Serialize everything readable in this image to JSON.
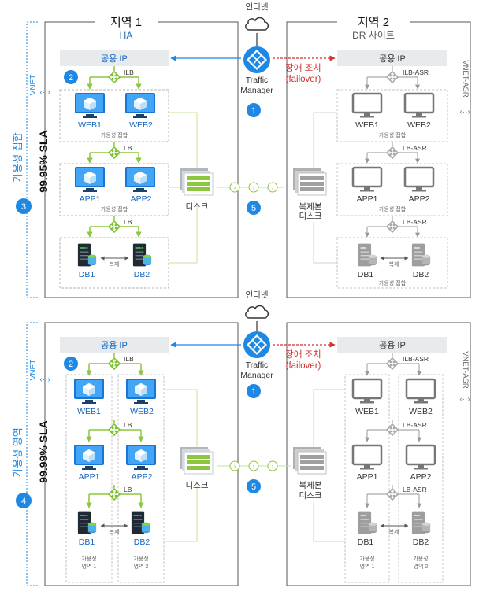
{
  "top": {
    "region1_title": "지역 1",
    "region1_sub": "HA",
    "region2_title": "지역 2",
    "region2_sub": "DR 사이트",
    "internet": "인터넷",
    "public_ip_left": "공용 IP",
    "public_ip_right": "공용 IP",
    "traffic_manager": [
      "Traffic",
      "Manager"
    ],
    "failover_ko": "장애 조치",
    "failover_en": "(failover)",
    "vnet": "VNET",
    "vnet_asr": "VNET-ASR",
    "ilb": "ILB",
    "lb": "LB",
    "ilb_asr": "ILB-ASR",
    "lb_asr": "LB-ASR",
    "web1": "WEB1",
    "web2": "WEB2",
    "app1": "APP1",
    "app2": "APP2",
    "db1": "DB1",
    "db2": "DB2",
    "availability_set": "가용성 집합",
    "replication": "복제",
    "disk": "디스크",
    "replica_disk": [
      "복제본",
      "디스크"
    ],
    "sla": "99.95% SLA",
    "side_label": "가용성 집합",
    "badge_2": "2",
    "badge_3": "3",
    "badge_1": "1",
    "badge_5": "5"
  },
  "bottom": {
    "internet": "인터넷",
    "public_ip_left": "공용 IP",
    "public_ip_right": "공용 IP",
    "traffic_manager": [
      "Traffic",
      "Manager"
    ],
    "failover_ko": "장애 조치",
    "failover_en": "(failover)",
    "vnet": "VNET",
    "vnet_asr": "VNET-ASR",
    "ilb": "ILB",
    "lb": "LB",
    "ilb_asr": "ILB-ASR",
    "lb_asr": "LB-ASR",
    "web1": "WEB1",
    "web2": "WEB2",
    "app1": "APP1",
    "app2": "APP2",
    "db1": "DB1",
    "db2": "DB2",
    "zone1": [
      "가용성",
      "영역 1"
    ],
    "zone2": [
      "가용성",
      "영역 2"
    ],
    "replication": "복제",
    "disk": "디스크",
    "replica_disk": [
      "복제본",
      "디스크"
    ],
    "sla": "99.99% SLA",
    "side_label": "가용성 영역",
    "badge_2": "2",
    "badge_4": "4",
    "badge_1": "1",
    "badge_5": "5"
  },
  "colors": {
    "blue": "#1e88e5",
    "green": "#8dc63f",
    "red": "#d32f2f",
    "grey": "#b0b0b0",
    "vm_blue": "#2b8ad6"
  }
}
